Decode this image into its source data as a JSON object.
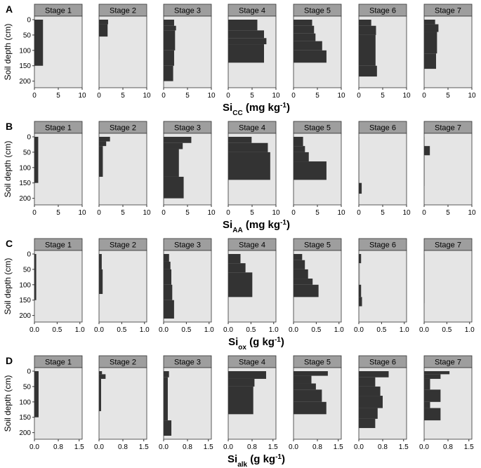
{
  "figure": {
    "ylabel": "Soil depth (cm)",
    "stages": [
      "Stage 1",
      "Stage 2",
      "Stage 3",
      "Stage 4",
      "Stage 5",
      "Stage 6",
      "Stage 7"
    ],
    "colors": {
      "panel_bg": "#e5e5e5",
      "strip_bg": "#9e9e9e",
      "bar": "#333333",
      "text": "#000000"
    }
  },
  "chart_data": [
    {
      "type": "bar",
      "orientation": "horizontal-depth-profile",
      "panel_letter": "A",
      "xlabel_main": "Si",
      "xlabel_sub": "CC",
      "xlabel_unit": " (mg kg",
      "xlabel_exp": "-1",
      "xlabel_close": ")",
      "xlim": [
        0,
        10
      ],
      "xticks": [
        0,
        5,
        10
      ],
      "xtick_labels": [
        "0",
        "5",
        "10"
      ],
      "ylim": [
        0,
        210
      ],
      "yticks": [
        0,
        50,
        100,
        150,
        200
      ],
      "ytick_labels": [
        "0",
        "50",
        "100",
        "150",
        "200"
      ],
      "series": [
        {
          "stage": "Stage 1",
          "layers": [
            [
              0,
              150,
              1.8
            ]
          ]
        },
        {
          "stage": "Stage 2",
          "layers": [
            [
              0,
              15,
              1.9
            ],
            [
              15,
              55,
              1.8
            ],
            [
              55,
              130,
              0.1
            ]
          ]
        },
        {
          "stage": "Stage 3",
          "layers": [
            [
              0,
              20,
              2.2
            ],
            [
              20,
              35,
              2.6
            ],
            [
              35,
              100,
              2.4
            ],
            [
              100,
              150,
              2.2
            ],
            [
              150,
              200,
              2.0
            ]
          ]
        },
        {
          "stage": "Stage 4",
          "layers": [
            [
              0,
              35,
              6.1
            ],
            [
              35,
              60,
              7.5
            ],
            [
              60,
              80,
              8.0
            ],
            [
              80,
              140,
              7.5
            ]
          ]
        },
        {
          "stage": "Stage 5",
          "layers": [
            [
              0,
              20,
              3.9
            ],
            [
              20,
              45,
              4.3
            ],
            [
              45,
              70,
              4.6
            ],
            [
              70,
              100,
              6.0
            ],
            [
              100,
              140,
              6.9
            ]
          ]
        },
        {
          "stage": "Stage 6",
          "layers": [
            [
              0,
              20,
              2.6
            ],
            [
              20,
              50,
              3.6
            ],
            [
              50,
              150,
              3.5
            ],
            [
              150,
              185,
              3.8
            ]
          ]
        },
        {
          "stage": "Stage 7",
          "layers": [
            [
              0,
              15,
              2.3
            ],
            [
              15,
              40,
              3.0
            ],
            [
              40,
              110,
              2.7
            ],
            [
              110,
              160,
              2.5
            ]
          ]
        }
      ]
    },
    {
      "type": "bar",
      "orientation": "horizontal-depth-profile",
      "panel_letter": "B",
      "xlabel_main": "Si",
      "xlabel_sub": "AA",
      "xlabel_unit": " (mg kg",
      "xlabel_exp": "-1",
      "xlabel_close": ")",
      "xlim": [
        0,
        10
      ],
      "xticks": [
        0,
        5,
        10
      ],
      "xtick_labels": [
        "0",
        "5",
        "10"
      ],
      "ylim": [
        0,
        210
      ],
      "yticks": [
        0,
        50,
        100,
        150,
        200
      ],
      "ytick_labels": [
        "0",
        "50",
        "100",
        "150",
        "200"
      ],
      "series": [
        {
          "stage": "Stage 1",
          "layers": [
            [
              0,
              150,
              0.8
            ]
          ]
        },
        {
          "stage": "Stage 2",
          "layers": [
            [
              0,
              15,
              2.3
            ],
            [
              15,
              30,
              1.5
            ],
            [
              30,
              130,
              0.8
            ]
          ]
        },
        {
          "stage": "Stage 3",
          "layers": [
            [
              0,
              20,
              5.8
            ],
            [
              20,
              40,
              4.0
            ],
            [
              40,
              130,
              3.2
            ],
            [
              130,
              200,
              4.2
            ]
          ]
        },
        {
          "stage": "Stage 4",
          "layers": [
            [
              0,
              20,
              4.9
            ],
            [
              20,
              50,
              8.3
            ],
            [
              50,
              140,
              8.8
            ]
          ]
        },
        {
          "stage": "Stage 5",
          "layers": [
            [
              0,
              30,
              2.0
            ],
            [
              30,
              50,
              2.4
            ],
            [
              50,
              80,
              3.2
            ],
            [
              80,
              140,
              6.9
            ]
          ]
        },
        {
          "stage": "Stage 6",
          "layers": [
            [
              0,
              150,
              0.1
            ],
            [
              150,
              185,
              0.6
            ]
          ]
        },
        {
          "stage": "Stage 7",
          "layers": [
            [
              0,
              30,
              0.1
            ],
            [
              30,
              60,
              1.2
            ],
            [
              60,
              160,
              0.1
            ]
          ]
        }
      ]
    },
    {
      "type": "bar",
      "orientation": "horizontal-depth-profile",
      "panel_letter": "C",
      "xlabel_main": "Si",
      "xlabel_sub": "ox",
      "xlabel_unit": " (g kg",
      "xlabel_exp": "-1",
      "xlabel_close": ")",
      "xlim": [
        0,
        1.05
      ],
      "xticks": [
        0,
        0.5,
        1.0
      ],
      "xtick_labels": [
        "0.0",
        "0.5",
        "1.0"
      ],
      "ylim": [
        0,
        210
      ],
      "yticks": [
        0,
        50,
        100,
        150,
        200
      ],
      "ytick_labels": [
        "0",
        "50",
        "100",
        "150",
        "200"
      ],
      "series": [
        {
          "stage": "Stage 1",
          "layers": [
            [
              0,
              150,
              0.04
            ]
          ]
        },
        {
          "stage": "Stage 2",
          "layers": [
            [
              0,
              50,
              0.06
            ],
            [
              50,
              130,
              0.08
            ]
          ]
        },
        {
          "stage": "Stage 3",
          "layers": [
            [
              0,
              25,
              0.12
            ],
            [
              25,
              50,
              0.15
            ],
            [
              50,
              100,
              0.17
            ],
            [
              100,
              150,
              0.19
            ],
            [
              150,
              210,
              0.23
            ]
          ]
        },
        {
          "stage": "Stage 4",
          "layers": [
            [
              0,
              30,
              0.27
            ],
            [
              30,
              60,
              0.38
            ],
            [
              60,
              140,
              0.53
            ]
          ]
        },
        {
          "stage": "Stage 5",
          "layers": [
            [
              0,
              20,
              0.19
            ],
            [
              20,
              50,
              0.25
            ],
            [
              50,
              80,
              0.32
            ],
            [
              80,
              100,
              0.42
            ],
            [
              100,
              140,
              0.55
            ]
          ]
        },
        {
          "stage": "Stage 6",
          "layers": [
            [
              0,
              30,
              0.05
            ],
            [
              30,
              100,
              0.02
            ],
            [
              100,
              140,
              0.05
            ],
            [
              140,
              170,
              0.07
            ]
          ]
        },
        {
          "stage": "Stage 7",
          "layers": [
            [
              0,
              160,
              0.01
            ]
          ]
        }
      ]
    },
    {
      "type": "bar",
      "orientation": "horizontal-depth-profile",
      "panel_letter": "D",
      "xlabel_main": "Si",
      "xlabel_sub": "alk",
      "xlabel_unit": " (g kg",
      "xlabel_exp": "-1",
      "xlabel_close": ")",
      "xlim": [
        0,
        1.6
      ],
      "xticks": [
        0,
        0.8,
        1.5
      ],
      "xtick_labels": [
        "0.0",
        "0.8",
        "1.5"
      ],
      "ylim": [
        0,
        210
      ],
      "yticks": [
        0,
        50,
        100,
        150,
        200
      ],
      "ytick_labels": [
        "0",
        "50",
        "100",
        "150",
        "200"
      ],
      "series": [
        {
          "stage": "Stage 1",
          "layers": [
            [
              0,
              150,
              0.14
            ]
          ]
        },
        {
          "stage": "Stage 2",
          "layers": [
            [
              0,
              10,
              0.1
            ],
            [
              10,
              25,
              0.22
            ],
            [
              25,
              130,
              0.07
            ]
          ]
        },
        {
          "stage": "Stage 3",
          "layers": [
            [
              0,
              20,
              0.18
            ],
            [
              20,
              160,
              0.14
            ],
            [
              160,
              210,
              0.26
            ]
          ]
        },
        {
          "stage": "Stage 4",
          "layers": [
            [
              0,
              25,
              1.27
            ],
            [
              25,
              50,
              0.88
            ],
            [
              50,
              140,
              0.84
            ]
          ]
        },
        {
          "stage": "Stage 5",
          "layers": [
            [
              0,
              15,
              1.15
            ],
            [
              15,
              40,
              0.6
            ],
            [
              40,
              60,
              0.75
            ],
            [
              60,
              100,
              0.95
            ],
            [
              100,
              140,
              1.1
            ]
          ]
        },
        {
          "stage": "Stage 6",
          "layers": [
            [
              0,
              20,
              1.0
            ],
            [
              20,
              50,
              0.55
            ],
            [
              50,
              80,
              0.72
            ],
            [
              80,
              120,
              0.8
            ],
            [
              120,
              155,
              0.63
            ],
            [
              155,
              185,
              0.55
            ]
          ]
        },
        {
          "stage": "Stage 7",
          "layers": [
            [
              0,
              10,
              0.85
            ],
            [
              10,
              25,
              0.55
            ],
            [
              25,
              60,
              0.2
            ],
            [
              60,
              100,
              0.55
            ],
            [
              100,
              120,
              0.2
            ],
            [
              120,
              160,
              0.55
            ]
          ]
        }
      ]
    }
  ]
}
